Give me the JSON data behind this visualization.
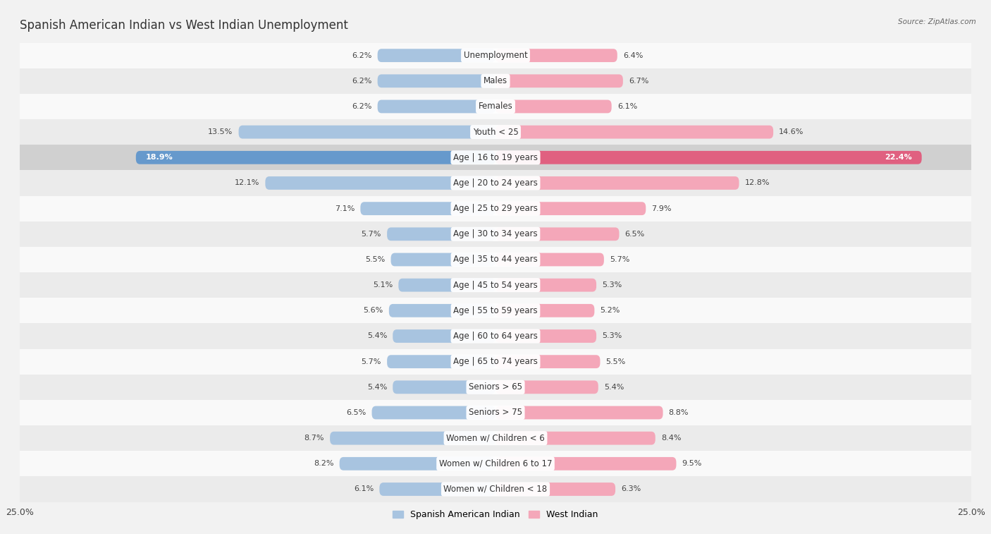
{
  "title": "Spanish American Indian vs West Indian Unemployment",
  "source": "Source: ZipAtlas.com",
  "categories": [
    "Unemployment",
    "Males",
    "Females",
    "Youth < 25",
    "Age | 16 to 19 years",
    "Age | 20 to 24 years",
    "Age | 25 to 29 years",
    "Age | 30 to 34 years",
    "Age | 35 to 44 years",
    "Age | 45 to 54 years",
    "Age | 55 to 59 years",
    "Age | 60 to 64 years",
    "Age | 65 to 74 years",
    "Seniors > 65",
    "Seniors > 75",
    "Women w/ Children < 6",
    "Women w/ Children 6 to 17",
    "Women w/ Children < 18"
  ],
  "left_values": [
    6.2,
    6.2,
    6.2,
    13.5,
    18.9,
    12.1,
    7.1,
    5.7,
    5.5,
    5.1,
    5.6,
    5.4,
    5.7,
    5.4,
    6.5,
    8.7,
    8.2,
    6.1
  ],
  "right_values": [
    6.4,
    6.7,
    6.1,
    14.6,
    22.4,
    12.8,
    7.9,
    6.5,
    5.7,
    5.3,
    5.2,
    5.3,
    5.5,
    5.4,
    8.8,
    8.4,
    9.5,
    6.3
  ],
  "left_color": "#a8c4e0",
  "right_color": "#f4a7b9",
  "left_label": "Spanish American Indian",
  "right_label": "West Indian",
  "xlim": 25.0,
  "bg_color": "#f2f2f2",
  "row_colors_even": "#f9f9f9",
  "row_colors_odd": "#ebebeb",
  "title_fontsize": 12,
  "label_fontsize": 8.5,
  "value_fontsize": 8,
  "highlight_row": 4,
  "highlight_left_color": "#6699cc",
  "highlight_right_color": "#e06080",
  "highlight_bg": "#d0d0d0"
}
